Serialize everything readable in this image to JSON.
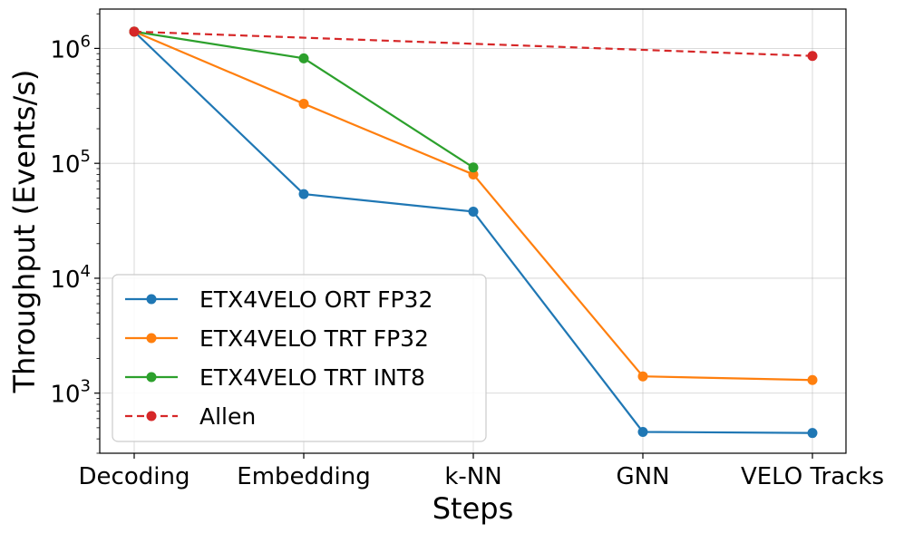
{
  "chart_data": {
    "type": "line",
    "y_scale": "log",
    "categories": [
      "Decoding",
      "Embedding",
      "k-NN",
      "GNN",
      "VELO Tracks"
    ],
    "xlabel": "Steps",
    "ylabel": "Throughput (Events/s)",
    "ylim": [
      300,
      2200000
    ],
    "y_ticks": [
      {
        "value": 1000,
        "base": "10",
        "exp": "3"
      },
      {
        "value": 10000,
        "base": "10",
        "exp": "4"
      },
      {
        "value": 100000,
        "base": "10",
        "exp": "5"
      },
      {
        "value": 1000000,
        "base": "10",
        "exp": "6"
      }
    ],
    "grid": true,
    "legend_position": "lower-left",
    "series": [
      {
        "name": "ETX4VELO ORT FP32",
        "color": "#1f77b4",
        "dashed": false,
        "values": [
          1400000,
          54000,
          38000,
          460,
          450
        ]
      },
      {
        "name": "ETX4VELO TRT FP32",
        "color": "#ff7f0e",
        "dashed": false,
        "values": [
          1400000,
          330000,
          80000,
          1400,
          1300
        ]
      },
      {
        "name": "ETX4VELO TRT INT8",
        "color": "#2ca02c",
        "dashed": false,
        "values": [
          1400000,
          820000,
          92000,
          null,
          null
        ]
      },
      {
        "name": "Allen",
        "color": "#d62728",
        "dashed": true,
        "values": [
          1400000,
          null,
          null,
          null,
          860000
        ]
      }
    ]
  }
}
